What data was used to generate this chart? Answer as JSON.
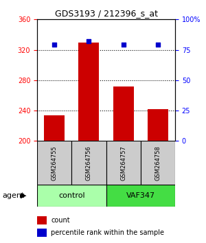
{
  "title": "GDS3193 / 212396_s_at",
  "samples": [
    "GSM264755",
    "GSM264756",
    "GSM264757",
    "GSM264758"
  ],
  "counts": [
    234,
    330,
    272,
    242
  ],
  "percentile_ranks": [
    79,
    82,
    79,
    79
  ],
  "groups": [
    "control",
    "control",
    "VAF347",
    "VAF347"
  ],
  "group_colors": [
    "#90EE90",
    "#90EE90",
    "#00CC00",
    "#00CC00"
  ],
  "ylim_left": [
    200,
    360
  ],
  "ylim_right": [
    0,
    100
  ],
  "yticks_left": [
    200,
    240,
    280,
    320,
    360
  ],
  "yticks_right": [
    0,
    25,
    50,
    75,
    100
  ],
  "bar_color": "#CC0000",
  "dot_color": "#0000CC",
  "bar_width": 0.6,
  "grid_color": "#000000",
  "label_count": "count",
  "label_pct": "percentile rank within the sample",
  "group_label": "agent",
  "group_names": [
    "control",
    "VAF347"
  ],
  "group_box_colors": [
    "#AAFFAA",
    "#44DD44"
  ],
  "sample_box_color": "#CCCCCC"
}
